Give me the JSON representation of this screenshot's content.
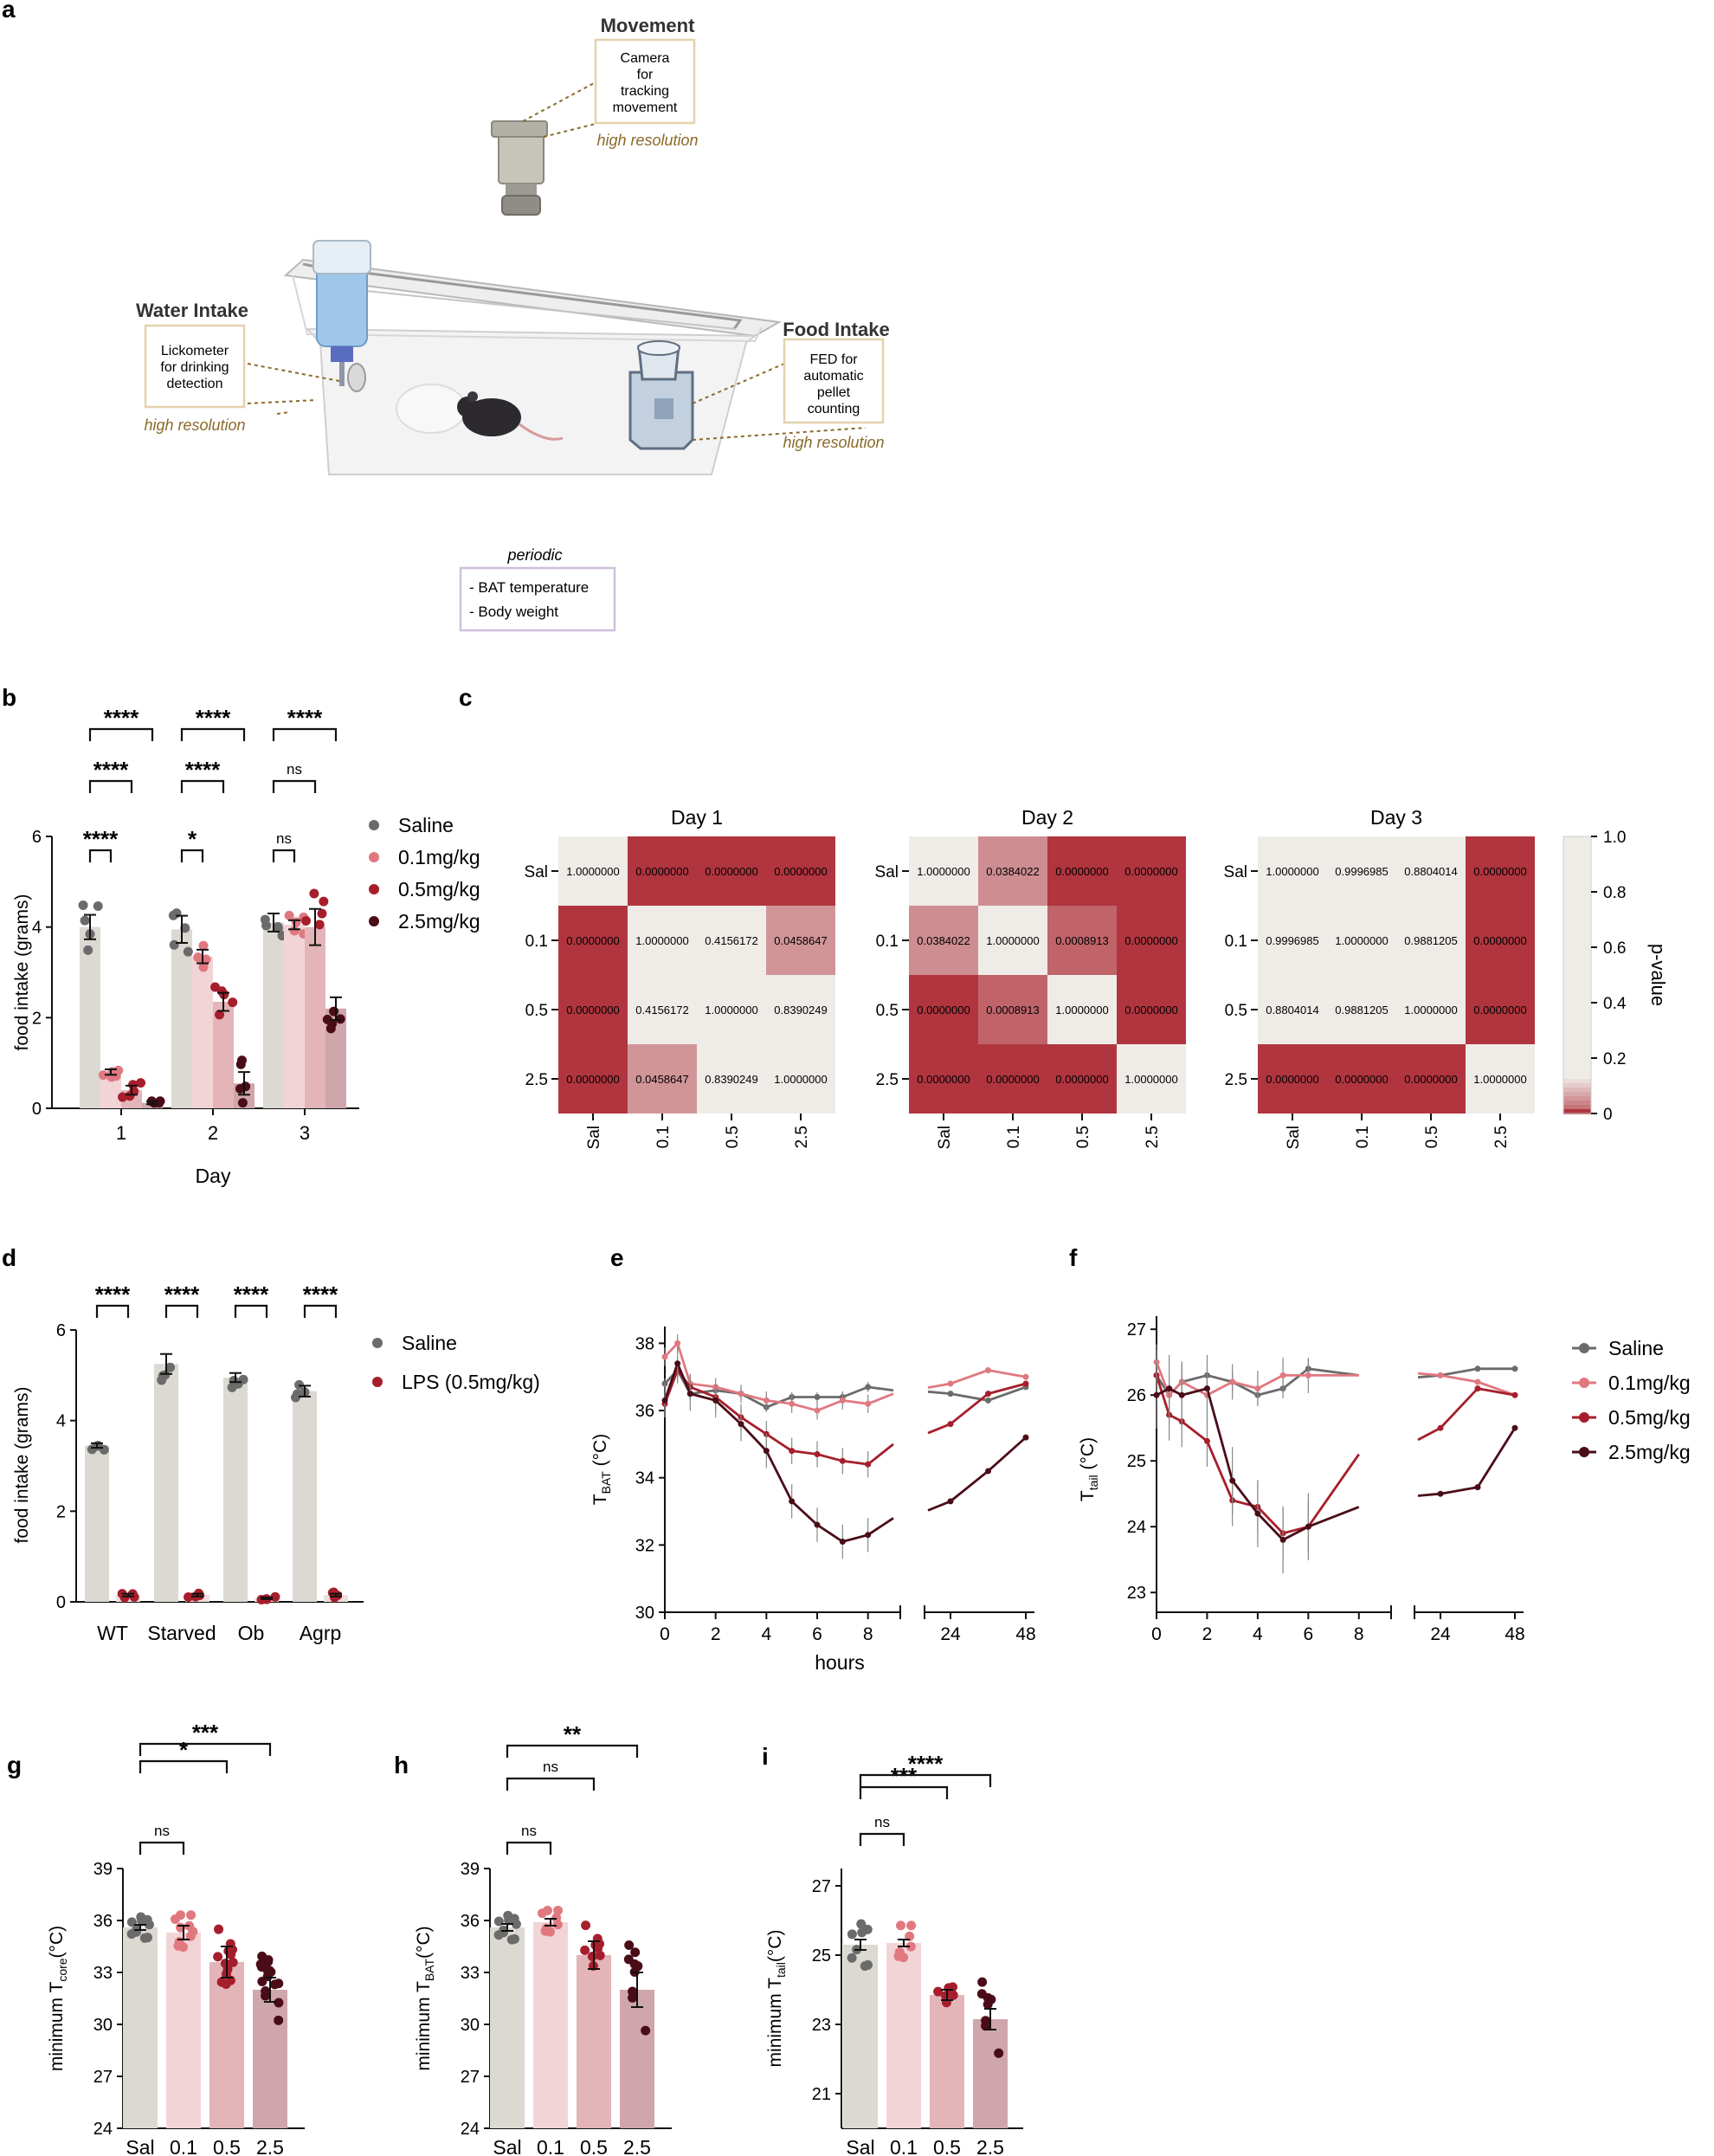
{
  "colors": {
    "saline": "#6b6b6b",
    "d01": "#e07880",
    "d05": "#a61e2c",
    "d25": "#4a0d18",
    "lps": "#a61e2c",
    "heat_high": "#efece8",
    "heat_low": "#b0353f",
    "bar_saline": "#dcd9d2",
    "bar_d01": "#f3d4d6",
    "bar_d05": "#e3b4b8",
    "bar_d25": "#cfa6ac"
  },
  "panel_letters": {
    "a": "a",
    "b": "b",
    "c": "c",
    "d": "d",
    "e": "e",
    "f": "f",
    "g": "g",
    "h": "h",
    "i": "i"
  },
  "panel_a": {
    "movement_title": "Movement",
    "movement_box": [
      "Camera",
      "for",
      "tracking",
      "movement"
    ],
    "movement_res": "high resolution",
    "water_title": "Water Intake",
    "water_box": [
      "Lickometer",
      "for drinking",
      "detection"
    ],
    "water_res": "high resolution",
    "food_title": "Food Intake",
    "food_box": [
      "FED for",
      "automatic",
      "pellet",
      "counting"
    ],
    "food_res": "high resolution",
    "periodic_title": "periodic",
    "periodic_items": [
      "- BAT temperature",
      "- Body weight"
    ]
  },
  "legend_doses": [
    "Saline",
    "0.1mg/kg",
    "0.5mg/kg",
    "2.5mg/kg"
  ],
  "legend_lps": [
    "Saline",
    "LPS (0.5mg/kg)"
  ],
  "chart_data": [
    {
      "id": "b",
      "type": "bar",
      "xlabel": "Day",
      "ylabel": "food intake (grams)",
      "ylim": [
        0,
        6
      ],
      "yticks": [
        0,
        2,
        4,
        6
      ],
      "categories": [
        "1",
        "2",
        "3"
      ],
      "series": [
        {
          "name": "Saline",
          "values": [
            4.0,
            3.95,
            4.1
          ],
          "err": [
            0.27,
            0.3,
            0.2
          ]
        },
        {
          "name": "0.1mg/kg",
          "values": [
            0.8,
            3.35,
            4.05
          ],
          "err": [
            0.06,
            0.15,
            0.1
          ]
        },
        {
          "name": "0.5mg/kg",
          "values": [
            0.4,
            2.35,
            4.0
          ],
          "err": [
            0.1,
            0.2,
            0.4
          ]
        },
        {
          "name": "2.5mg/kg",
          "values": [
            0.12,
            0.55,
            2.2
          ],
          "err": [
            0.03,
            0.25,
            0.25
          ]
        }
      ],
      "significance": [
        {
          "category": "1",
          "label": "****",
          "from": 0,
          "to": 1
        },
        {
          "category": "1",
          "label": "****",
          "from": 0,
          "to": 2
        },
        {
          "category": "1",
          "label": "****",
          "from": 0,
          "to": 3
        },
        {
          "category": "2",
          "label": "*",
          "from": 0,
          "to": 1
        },
        {
          "category": "2",
          "label": "****",
          "from": 0,
          "to": 2
        },
        {
          "category": "2",
          "label": "****",
          "from": 0,
          "to": 3
        },
        {
          "category": "3",
          "label": "ns",
          "from": 0,
          "to": 1
        },
        {
          "category": "3",
          "label": "ns",
          "from": 0,
          "to": 2
        },
        {
          "category": "3",
          "label": "****",
          "from": 0,
          "to": 3
        }
      ]
    },
    {
      "id": "c",
      "type": "heatmap",
      "colorbar_label": "p-value",
      "colorbar_ticks": [
        "1.0",
        "0.8",
        "0.6",
        "0.4",
        "0.2",
        "0"
      ],
      "row_labels": [
        "Sal",
        "0.1",
        "0.5",
        "2.5"
      ],
      "col_labels": [
        "Sal",
        "0.1",
        "0.5",
        "2.5"
      ],
      "matrices": [
        {
          "title": "Day 1",
          "values": [
            [
              "1.0000000",
              "0.0000000",
              "0.0000000",
              "0.0000000"
            ],
            [
              "0.0000000",
              "1.0000000",
              "0.4156172",
              "0.0458647"
            ],
            [
              "0.0000000",
              "0.4156172",
              "1.0000000",
              "0.8390249"
            ],
            [
              "0.0000000",
              "0.0458647",
              "0.8390249",
              "1.0000000"
            ]
          ]
        },
        {
          "title": "Day 2",
          "values": [
            [
              "1.0000000",
              "0.0384022",
              "0.0000000",
              "0.0000000"
            ],
            [
              "0.0384022",
              "1.0000000",
              "0.0008913",
              "0.0000000"
            ],
            [
              "0.0000000",
              "0.0008913",
              "1.0000000",
              "0.0000000"
            ],
            [
              "0.0000000",
              "0.0000000",
              "0.0000000",
              "1.0000000"
            ]
          ]
        },
        {
          "title": "Day 3",
          "values": [
            [
              "1.0000000",
              "0.9996985",
              "0.8804014",
              "0.0000000"
            ],
            [
              "0.9996985",
              "1.0000000",
              "0.9881205",
              "0.0000000"
            ],
            [
              "0.8804014",
              "0.9881205",
              "1.0000000",
              "0.0000000"
            ],
            [
              "0.0000000",
              "0.0000000",
              "0.0000000",
              "1.0000000"
            ]
          ]
        }
      ]
    },
    {
      "id": "d",
      "type": "bar",
      "ylabel": "food intake (grams)",
      "ylim": [
        0,
        6
      ],
      "yticks": [
        0,
        2,
        4,
        6
      ],
      "categories": [
        "WT",
        "Starved",
        "Ob",
        "Agrp"
      ],
      "series": [
        {
          "name": "Saline",
          "values": [
            3.45,
            5.25,
            4.95,
            4.65
          ],
          "err": [
            0.05,
            0.22,
            0.1,
            0.12
          ]
        },
        {
          "name": "LPS (0.5mg/kg)",
          "values": [
            0.15,
            0.15,
            0.08,
            0.15
          ],
          "err": [
            0.03,
            0.03,
            0.02,
            0.03
          ]
        }
      ],
      "significance": [
        {
          "category": "WT",
          "label": "****"
        },
        {
          "category": "Starved",
          "label": "****"
        },
        {
          "category": "Ob",
          "label": "****"
        },
        {
          "category": "Agrp",
          "label": "****"
        }
      ]
    },
    {
      "id": "e",
      "type": "line",
      "xlabel": "hours",
      "ylabel": "T",
      "ylabel_sub": "BAT",
      "ylabel_unit": "(°C)",
      "ylim": [
        30,
        38.5
      ],
      "yticks": [
        30,
        32,
        34,
        36,
        38
      ],
      "xticks_left": [
        "0",
        "2",
        "4",
        "6",
        "8"
      ],
      "xticks_right": [
        "24",
        "48"
      ],
      "x": [
        0,
        0.5,
        1,
        2,
        3,
        4,
        5,
        6,
        7,
        8,
        9
      ],
      "x_late": [
        24,
        36,
        48
      ],
      "series": [
        {
          "name": "Saline",
          "values": [
            36.8,
            37.2,
            36.5,
            36.6,
            36.5,
            36.1,
            36.4,
            36.4,
            36.4,
            36.7,
            36.6
          ],
          "late": [
            36.5,
            36.3,
            36.7
          ]
        },
        {
          "name": "0.1mg/kg",
          "values": [
            37.6,
            38.0,
            36.8,
            36.7,
            36.5,
            36.3,
            36.2,
            36.0,
            36.3,
            36.2,
            36.5
          ],
          "late": [
            36.8,
            37.2,
            37.0
          ]
        },
        {
          "name": "0.5mg/kg",
          "values": [
            36.2,
            37.2,
            36.7,
            36.4,
            35.8,
            35.3,
            34.8,
            34.7,
            34.5,
            34.4,
            35.0
          ],
          "late": [
            35.6,
            36.5,
            36.8
          ]
        },
        {
          "name": "2.5mg/kg",
          "values": [
            36.3,
            37.4,
            36.5,
            36.3,
            35.6,
            34.8,
            33.3,
            32.6,
            32.1,
            32.3,
            32.8
          ],
          "late": [
            33.3,
            34.2,
            35.2
          ]
        }
      ]
    },
    {
      "id": "f",
      "type": "line",
      "ylabel": "T",
      "ylabel_sub": "tail",
      "ylabel_unit": "(°C)",
      "ylim": [
        22.7,
        27.2
      ],
      "yticks": [
        23,
        24,
        25,
        26,
        27
      ],
      "xticks_left": [
        "0",
        "2",
        "4",
        "6",
        "8"
      ],
      "xticks_right": [
        "24",
        "48"
      ],
      "x": [
        0,
        0.5,
        1,
        2,
        3,
        4,
        5,
        6,
        8
      ],
      "x_late": [
        24,
        36,
        48
      ],
      "series": [
        {
          "name": "Saline",
          "values": [
            26.3,
            26.0,
            26.2,
            26.3,
            26.2,
            26.0,
            26.1,
            26.4,
            26.3
          ],
          "late": [
            26.3,
            26.4,
            26.4
          ]
        },
        {
          "name": "0.1mg/kg",
          "values": [
            26.5,
            26.0,
            26.2,
            26.0,
            26.2,
            26.1,
            26.3,
            26.3,
            26.3
          ],
          "late": [
            26.3,
            26.2,
            26.0
          ]
        },
        {
          "name": "0.5mg/kg",
          "values": [
            26.3,
            25.7,
            25.6,
            25.3,
            24.4,
            24.3,
            23.9,
            24.0,
            25.1
          ],
          "late": [
            25.5,
            26.1,
            26.0
          ]
        },
        {
          "name": "2.5mg/kg",
          "values": [
            26.0,
            26.1,
            26.0,
            26.1,
            24.7,
            24.2,
            23.8,
            24.0,
            24.3
          ],
          "late": [
            24.5,
            24.6,
            25.5
          ]
        }
      ]
    },
    {
      "id": "g",
      "type": "bar",
      "ylabel": "minimum T",
      "ylabel_sub": "core",
      "ylabel_unit": "(°C)",
      "ylim": [
        24,
        39
      ],
      "yticks": [
        24,
        27,
        30,
        33,
        36,
        39
      ],
      "categories": [
        "Sal",
        "0.1",
        "0.5",
        "2.5"
      ],
      "values": [
        35.6,
        35.3,
        33.6,
        32.0
      ],
      "err": [
        0.15,
        0.4,
        0.9,
        0.7
      ],
      "significance": [
        {
          "label": "ns",
          "from": 0,
          "to": 1
        },
        {
          "label": "*",
          "from": 0,
          "to": 2
        },
        {
          "label": "***",
          "from": 0,
          "to": 3
        }
      ]
    },
    {
      "id": "h",
      "type": "bar",
      "ylabel": "minimum T",
      "ylabel_sub": "BAT",
      "ylabel_unit": "(°C)",
      "ylim": [
        24,
        39
      ],
      "yticks": [
        24,
        27,
        30,
        33,
        36,
        39
      ],
      "categories": [
        "Sal",
        "0.1",
        "0.5",
        "2.5"
      ],
      "values": [
        35.6,
        35.9,
        34.0,
        32.0
      ],
      "err": [
        0.2,
        0.2,
        0.8,
        1.0
      ],
      "significance": [
        {
          "label": "ns",
          "from": 0,
          "to": 1
        },
        {
          "label": "ns",
          "from": 0,
          "to": 2
        },
        {
          "label": "**",
          "from": 0,
          "to": 3
        }
      ]
    },
    {
      "id": "i",
      "type": "bar",
      "ylabel": "minimum T",
      "ylabel_sub": "tail",
      "ylabel_unit": "(°C)",
      "ylim": [
        20,
        27.5
      ],
      "yticks": [
        21,
        23,
        25,
        27
      ],
      "categories": [
        "Sal",
        "0.1",
        "0.5",
        "2.5"
      ],
      "values": [
        25.3,
        25.35,
        23.85,
        23.15
      ],
      "err": [
        0.15,
        0.1,
        0.15,
        0.3
      ],
      "significance": [
        {
          "label": "ns",
          "from": 0,
          "to": 1
        },
        {
          "label": "***",
          "from": 0,
          "to": 2
        },
        {
          "label": "****",
          "from": 0,
          "to": 3
        }
      ]
    }
  ]
}
